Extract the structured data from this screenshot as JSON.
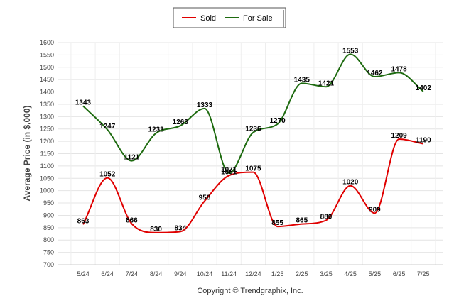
{
  "chart_data": {
    "type": "line",
    "categories": [
      "5/24",
      "6/24",
      "7/24",
      "8/24",
      "9/24",
      "10/24",
      "11/24",
      "12/24",
      "1/25",
      "2/25",
      "3/25",
      "4/25",
      "5/25",
      "6/25",
      "7/25"
    ],
    "series": [
      {
        "name": "Sold",
        "color": "#e00000",
        "values": [
          863,
          1052,
          866,
          830,
          834,
          958,
          1061,
          1075,
          855,
          865,
          880,
          1020,
          909,
          1209,
          1190
        ]
      },
      {
        "name": "For Sale",
        "color": "#1e6b10",
        "values": [
          1343,
          1247,
          1121,
          1233,
          1263,
          1333,
          1071,
          1236,
          1270,
          1435,
          1421,
          1553,
          1462,
          1478,
          1402
        ]
      }
    ],
    "ylabel": "Average Price (in $,000)",
    "ylim": [
      700,
      1600
    ],
    "yticks": [
      "700",
      "750",
      "800",
      "850",
      "900",
      "950",
      "1000",
      "1050",
      "1100",
      "1150",
      "1200",
      "1250",
      "1300",
      "1350",
      "1400",
      "1450",
      "1500",
      "1550",
      "1600"
    ],
    "grid": true,
    "legend_position": "top-center"
  },
  "footer": "Copyright © Trendgraphix, Inc."
}
